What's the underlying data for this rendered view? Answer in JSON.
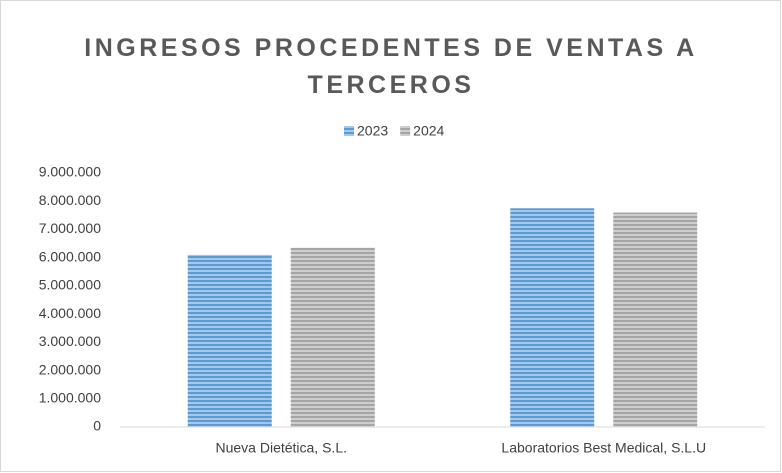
{
  "chart_data": {
    "type": "bar",
    "title": "INGRESOS PROCEDENTES DE VENTAS A TERCEROS",
    "categories": [
      "Nueva Dietética, S.L.",
      "Laboratorios Best Medical, S.L.U"
    ],
    "series": [
      {
        "name": "2023",
        "color": "#5b9bd5",
        "values": [
          6100000,
          7750000
        ]
      },
      {
        "name": "2024",
        "color": "#a5a5a5",
        "values": [
          6350000,
          7600000
        ]
      }
    ],
    "ylim": [
      0,
      9000000
    ],
    "yticks": [
      0,
      {
        "value": 1000000,
        "label": "1.000.000"
      },
      {
        "value": 2000000,
        "label": "2.000.000"
      },
      {
        "value": 3000000,
        "label": "3.000.000"
      },
      {
        "value": 4000000,
        "label": "4.000.000"
      },
      {
        "value": 5000000,
        "label": "5.000.000"
      },
      {
        "value": 6000000,
        "label": "6.000.000"
      },
      {
        "value": 7000000,
        "label": "7.000.000"
      },
      {
        "value": 8000000,
        "label": "8.000.000"
      },
      {
        "value": 9000000,
        "label": "9.000.000"
      }
    ],
    "grid": false,
    "legend": "top"
  }
}
